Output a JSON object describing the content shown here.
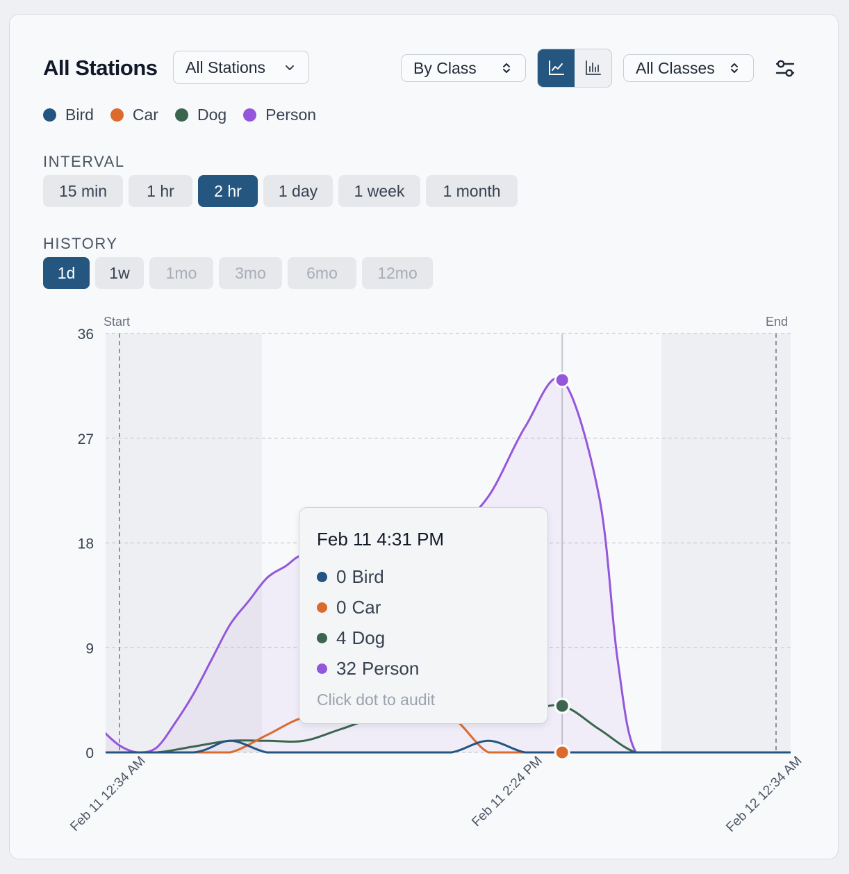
{
  "header": {
    "title": "All Stations",
    "station_select": "All Stations",
    "group_select": "By Class",
    "class_select": "All Classes"
  },
  "legend": [
    {
      "label": "Bird",
      "color": "#235580"
    },
    {
      "label": "Car",
      "color": "#dc6a2c"
    },
    {
      "label": "Dog",
      "color": "#3a6650"
    },
    {
      "label": "Person",
      "color": "#9456db"
    }
  ],
  "interval": {
    "label": "INTERVAL",
    "options": [
      "15 min",
      "1 hr",
      "2 hr",
      "1 day",
      "1 week",
      "1 month"
    ],
    "selected": "2 hr"
  },
  "history": {
    "label": "HISTORY",
    "options": [
      "1d",
      "1w",
      "1mo",
      "3mo",
      "6mo",
      "12mo"
    ],
    "selected": "1d",
    "disabled": [
      "1mo",
      "3mo",
      "6mo",
      "12mo"
    ]
  },
  "chart_data": {
    "type": "line",
    "y_ticks": [
      0,
      9,
      18,
      27,
      36
    ],
    "ylim": [
      0,
      36
    ],
    "x_tick_labels": [
      "Feb 11 12:34 AM",
      "Feb 11 2:24 PM",
      "Feb 12 12:34 AM"
    ],
    "markers": {
      "start": "Start",
      "end": "End"
    },
    "series": [
      {
        "name": "Person",
        "color": "#9456db",
        "points": [
          [
            -0.5,
            2
          ],
          [
            0,
            0.6
          ],
          [
            0.5,
            0
          ],
          [
            1,
            0.4
          ],
          [
            1.5,
            2.5
          ],
          [
            2,
            5
          ],
          [
            2.5,
            8
          ],
          [
            3,
            11
          ],
          [
            3.5,
            13
          ],
          [
            4,
            15
          ],
          [
            4.5,
            16
          ],
          [
            5,
            17
          ],
          [
            6,
            17
          ],
          [
            7,
            17
          ],
          [
            8,
            18
          ],
          [
            9,
            19
          ],
          [
            10,
            22
          ],
          [
            11,
            28
          ],
          [
            12,
            32
          ],
          [
            13,
            22
          ],
          [
            13.5,
            8
          ],
          [
            14,
            0
          ],
          [
            15,
            0
          ],
          [
            20,
            0
          ],
          [
            22,
            0
          ]
        ]
      },
      {
        "name": "Dog",
        "color": "#3a6650",
        "points": [
          [
            -0.5,
            0
          ],
          [
            0,
            0
          ],
          [
            1,
            0
          ],
          [
            2,
            0.5
          ],
          [
            3,
            1
          ],
          [
            4,
            1
          ],
          [
            5,
            1
          ],
          [
            6,
            2
          ],
          [
            7,
            3
          ],
          [
            8,
            3
          ],
          [
            9,
            3
          ],
          [
            10,
            3
          ],
          [
            11,
            3.5
          ],
          [
            12,
            4
          ],
          [
            13,
            2
          ],
          [
            14,
            0
          ],
          [
            15,
            0
          ],
          [
            20,
            0
          ],
          [
            22,
            0
          ]
        ]
      },
      {
        "name": "Car",
        "color": "#dc6a2c",
        "points": [
          [
            -0.5,
            0
          ],
          [
            0,
            0
          ],
          [
            1,
            0
          ],
          [
            2,
            0
          ],
          [
            3,
            0
          ],
          [
            4,
            1.5
          ],
          [
            5,
            3
          ],
          [
            6,
            3
          ],
          [
            7,
            3
          ],
          [
            8,
            3
          ],
          [
            9,
            3
          ],
          [
            10,
            0
          ],
          [
            11,
            0
          ],
          [
            12,
            0
          ],
          [
            13,
            0
          ],
          [
            14,
            0
          ],
          [
            15,
            0
          ],
          [
            20,
            0
          ],
          [
            22,
            0
          ]
        ]
      },
      {
        "name": "Bird",
        "color": "#235580",
        "points": [
          [
            -0.5,
            0
          ],
          [
            0,
            0
          ],
          [
            2,
            0
          ],
          [
            3,
            1
          ],
          [
            4,
            0
          ],
          [
            5,
            0
          ],
          [
            6,
            0
          ],
          [
            7,
            0
          ],
          [
            8,
            0
          ],
          [
            9,
            0
          ],
          [
            10,
            1
          ],
          [
            11,
            0
          ],
          [
            12,
            0
          ],
          [
            13,
            0
          ],
          [
            14,
            0
          ],
          [
            15,
            0
          ],
          [
            20,
            0
          ],
          [
            22,
            0
          ]
        ]
      }
    ],
    "highlight_index": 12,
    "grid": true
  },
  "tooltip": {
    "title": "Feb 11 4:31 PM",
    "rows": [
      {
        "value": "0",
        "label": "Bird",
        "color": "#235580"
      },
      {
        "value": "0",
        "label": "Car",
        "color": "#dc6a2c"
      },
      {
        "value": "4",
        "label": "Dog",
        "color": "#3a6650"
      },
      {
        "value": "32",
        "label": "Person",
        "color": "#9456db"
      }
    ],
    "hint": "Click dot to audit"
  }
}
